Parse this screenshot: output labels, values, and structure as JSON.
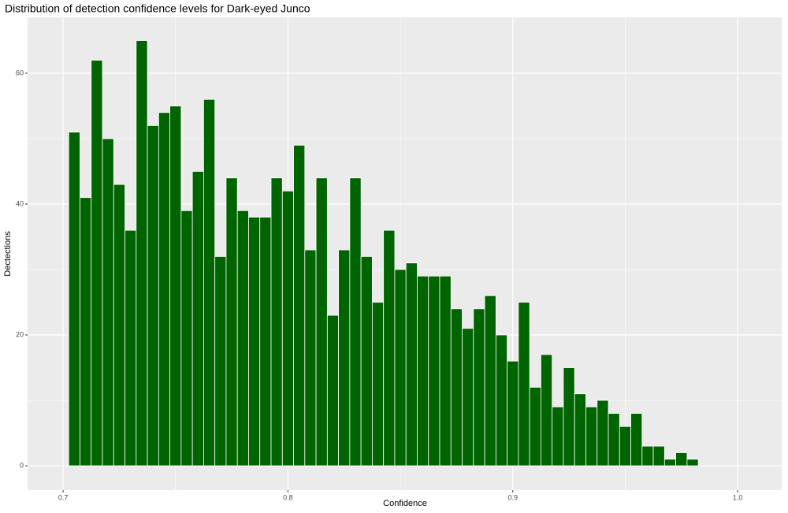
{
  "chart_data": {
    "type": "histogram",
    "title": "Distribution of detection confidence levels for Dark-eyed Junco",
    "x_label": "Confidence",
    "y_label": "Dectections",
    "bins": [
      0.7025,
      0.7075,
      0.7125,
      0.7175,
      0.7225,
      0.7275,
      0.7325,
      0.7375,
      0.7425,
      0.7475,
      0.7525,
      0.7575,
      0.7625,
      0.7675,
      0.7725,
      0.7775,
      0.7825,
      0.7875,
      0.7925,
      0.7975,
      0.8025,
      0.8075,
      0.8125,
      0.8175,
      0.8225,
      0.8275,
      0.8325,
      0.8375,
      0.8425,
      0.8475,
      0.8525,
      0.8575,
      0.8625,
      0.8675,
      0.8725,
      0.8775,
      0.8825,
      0.8875,
      0.8925,
      0.8975,
      0.9025,
      0.9075,
      0.9125,
      0.9175,
      0.9225,
      0.9275,
      0.9325,
      0.9375,
      0.9425,
      0.9475,
      0.9525,
      0.9575,
      0.9625,
      0.9675,
      0.9725,
      0.9775,
      0.9825
    ],
    "values": [
      51,
      41,
      62,
      50,
      43,
      36,
      65,
      52,
      54,
      55,
      39,
      45,
      56,
      32,
      44,
      39,
      38,
      38,
      44,
      42,
      49,
      33,
      44,
      23,
      33,
      44,
      32,
      25,
      36,
      30,
      31,
      29,
      29,
      29,
      24,
      21,
      24,
      26,
      20,
      16,
      25,
      12,
      17,
      9,
      15,
      11,
      9,
      10,
      8,
      6,
      8,
      3,
      3,
      1,
      2,
      1
    ],
    "color": "#006400",
    "xlim": [
      0.6842,
      1.0196
    ],
    "xticks": [
      0.7,
      0.8,
      0.9,
      {
        "value": 1,
        "label": "1.0"
      }
    ],
    "x_minor_ticks": [
      0.75,
      0.85,
      0.95
    ],
    "ylim": [
      -3.73,
      68.55
    ],
    "yticks": [
      0,
      20,
      40,
      60
    ],
    "y_minor_ticks": [
      10,
      30,
      50
    ],
    "grid": true
  }
}
